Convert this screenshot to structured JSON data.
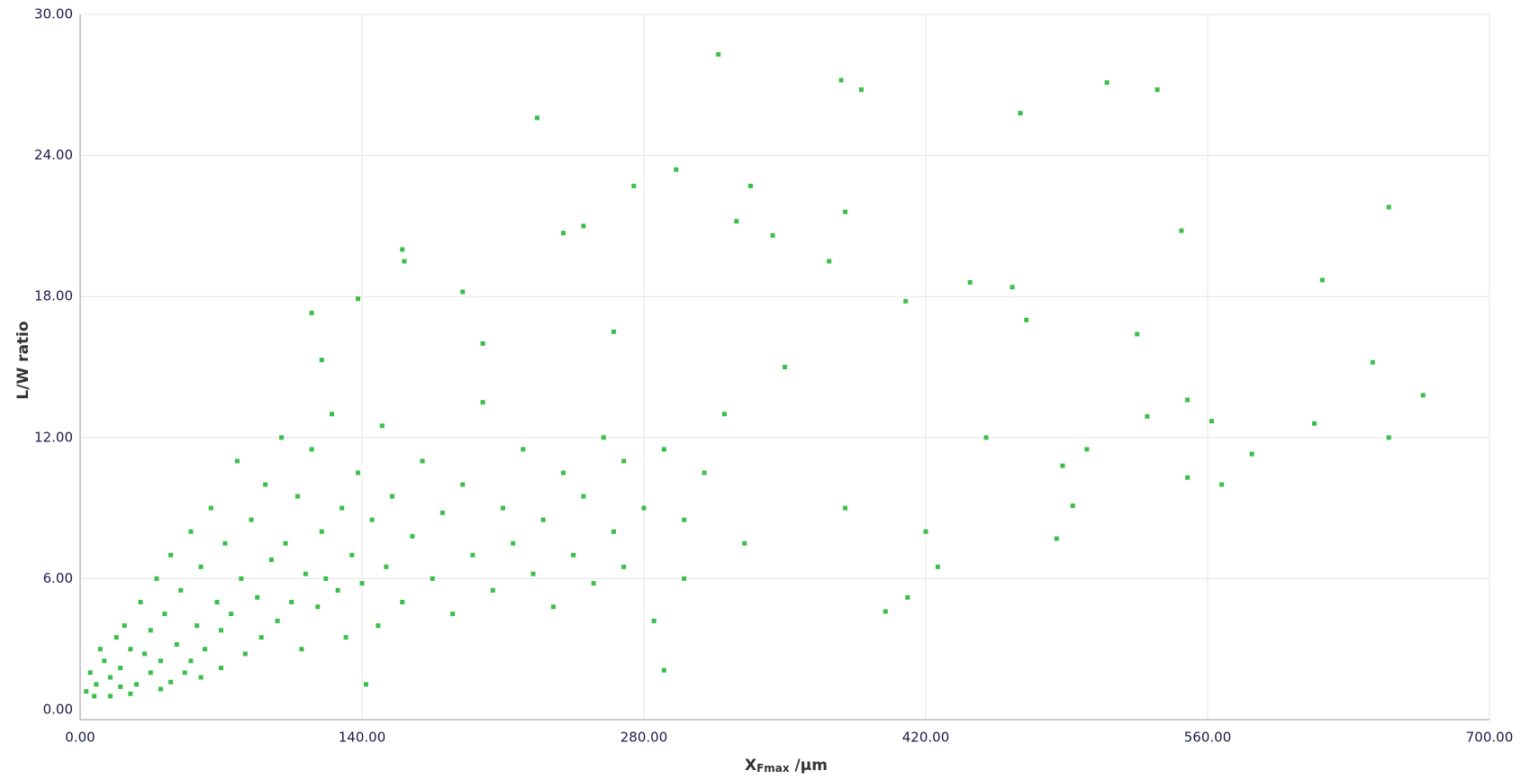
{
  "chart_data": {
    "type": "scatter",
    "xlabel_parts": [
      "X",
      "Fmax",
      " /µm"
    ],
    "ylabel": "L/W ratio",
    "color": "#3cbf4a",
    "grid": true,
    "xlim": [
      0,
      700
    ],
    "ylim": [
      0,
      30
    ],
    "xticks": [
      {
        "value": 0,
        "label": "0.00"
      },
      {
        "value": 140,
        "label": "140.00"
      },
      {
        "value": 280,
        "label": "280.00"
      },
      {
        "value": 420,
        "label": "420.00"
      },
      {
        "value": 560,
        "label": "560.00"
      },
      {
        "value": 700,
        "label": "700.00"
      }
    ],
    "yticks": [
      {
        "value": 0,
        "label": "0.00"
      },
      {
        "value": 6,
        "label": "6.00"
      },
      {
        "value": 12,
        "label": "12.00"
      },
      {
        "value": 18,
        "label": "18.00"
      },
      {
        "value": 24,
        "label": "24.00"
      },
      {
        "value": 30,
        "label": "30.00"
      }
    ],
    "x": [
      227,
      317,
      378,
      388,
      467,
      510,
      535,
      296,
      275,
      333,
      326,
      380,
      650,
      547,
      160,
      161,
      240,
      250,
      344,
      372,
      617,
      442,
      463,
      138,
      190,
      410,
      115,
      470,
      525,
      642,
      667,
      650,
      613,
      562,
      582,
      550,
      567,
      550,
      530,
      488,
      493,
      485,
      426,
      411,
      400,
      290,
      142,
      120,
      200,
      265,
      320,
      350,
      450,
      500,
      420,
      380,
      330,
      300,
      310,
      270,
      3,
      5,
      8,
      10,
      12,
      15,
      18,
      20,
      22,
      25,
      28,
      30,
      32,
      35,
      38,
      40,
      42,
      45,
      48,
      50,
      52,
      55,
      58,
      60,
      62,
      65,
      68,
      70,
      72,
      75,
      78,
      80,
      82,
      85,
      88,
      90,
      92,
      95,
      98,
      100,
      102,
      105,
      108,
      110,
      112,
      115,
      118,
      120,
      122,
      125,
      128,
      130,
      132,
      135,
      138,
      140,
      145,
      148,
      150,
      152,
      155,
      160,
      165,
      170,
      175,
      180,
      185,
      190,
      195,
      200,
      205,
      210,
      215,
      220,
      225,
      230,
      235,
      240,
      245,
      250,
      255,
      260,
      265,
      270,
      280,
      285,
      290,
      300,
      15,
      25,
      40,
      60,
      35,
      45,
      7,
      20,
      55,
      70
    ],
    "values": [
      25.6,
      28.3,
      27.2,
      26.8,
      25.8,
      27.1,
      26.8,
      23.4,
      22.7,
      22.7,
      21.2,
      21.6,
      21.8,
      20.8,
      20.0,
      19.5,
      20.7,
      21.0,
      20.6,
      19.5,
      18.7,
      18.6,
      18.4,
      17.9,
      18.2,
      17.8,
      17.3,
      17.0,
      16.4,
      15.2,
      13.8,
      12.0,
      12.6,
      12.7,
      11.3,
      10.3,
      10.0,
      13.6,
      12.9,
      10.8,
      9.1,
      7.7,
      6.5,
      5.2,
      4.6,
      2.1,
      1.5,
      15.3,
      16.0,
      16.5,
      13.0,
      15.0,
      12.0,
      11.5,
      8.0,
      9.0,
      7.5,
      6.0,
      10.5,
      11.0,
      1.2,
      2.0,
      1.5,
      3.0,
      2.5,
      1.8,
      3.5,
      2.2,
      4.0,
      3.0,
      1.5,
      5.0,
      2.8,
      3.8,
      6.0,
      2.5,
      4.5,
      7.0,
      3.2,
      5.5,
      2.0,
      8.0,
      4.0,
      6.5,
      3.0,
      9.0,
      5.0,
      3.8,
      7.5,
      4.5,
      11.0,
      6.0,
      2.8,
      8.5,
      5.2,
      3.5,
      10.0,
      6.8,
      4.2,
      12.0,
      7.5,
      5.0,
      9.5,
      3.0,
      6.2,
      11.5,
      4.8,
      8.0,
      6.0,
      13.0,
      5.5,
      9.0,
      3.5,
      7.0,
      10.5,
      5.8,
      8.5,
      4.0,
      12.5,
      6.5,
      9.5,
      5.0,
      7.8,
      11.0,
      6.0,
      8.8,
      4.5,
      10.0,
      7.0,
      13.5,
      5.5,
      9.0,
      7.5,
      11.5,
      6.2,
      8.5,
      4.8,
      10.5,
      7.0,
      9.5,
      5.8,
      12.0,
      8.0,
      6.5,
      9.0,
      4.2,
      11.5,
      8.5,
      1.0,
      1.1,
      1.3,
      1.8,
      2.0,
      1.6,
      1.0,
      1.4,
      2.5,
      2.2
    ]
  }
}
